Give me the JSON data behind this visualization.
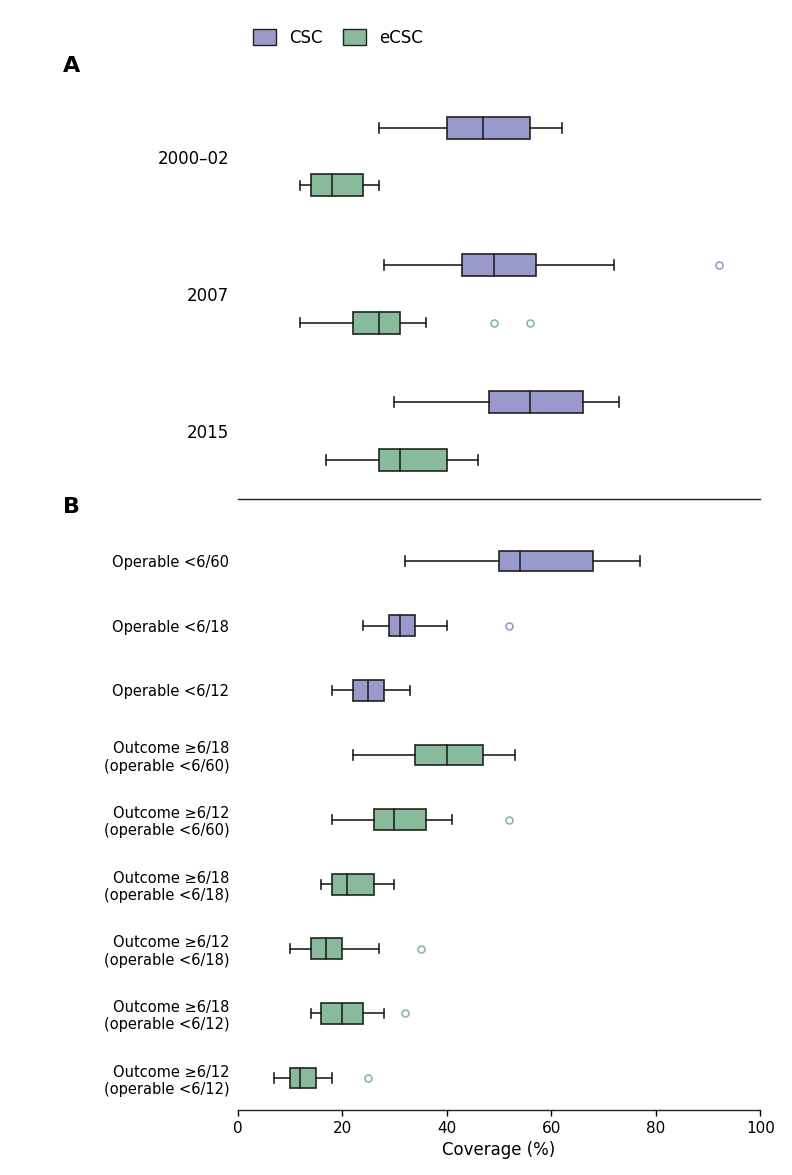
{
  "panel_A": {
    "title": "A",
    "rows": [
      {
        "label": "2000–02",
        "series": [
          {
            "type": "CSC",
            "color": "#9999cc",
            "whisker_low": 27,
            "q1": 40,
            "median": 47,
            "q3": 56,
            "whisker_high": 62,
            "outliers": []
          },
          {
            "type": "eCSC",
            "color": "#88bb99",
            "whisker_low": 12,
            "q1": 14,
            "median": 18,
            "q3": 24,
            "whisker_high": 27,
            "outliers": []
          }
        ]
      },
      {
        "label": "2007",
        "series": [
          {
            "type": "CSC",
            "color": "#9999cc",
            "whisker_low": 28,
            "q1": 43,
            "median": 49,
            "q3": 57,
            "whisker_high": 72,
            "outliers": [
              92
            ]
          },
          {
            "type": "eCSC",
            "color": "#88bb99",
            "whisker_low": 12,
            "q1": 22,
            "median": 27,
            "q3": 31,
            "whisker_high": 36,
            "outliers": [
              49,
              56
            ]
          }
        ]
      },
      {
        "label": "2015",
        "series": [
          {
            "type": "CSC",
            "color": "#9999cc",
            "whisker_low": 30,
            "q1": 48,
            "median": 56,
            "q3": 66,
            "whisker_high": 73,
            "outliers": []
          },
          {
            "type": "eCSC",
            "color": "#88bb99",
            "whisker_low": 17,
            "q1": 27,
            "median": 31,
            "q3": 40,
            "whisker_high": 46,
            "outliers": []
          }
        ]
      }
    ]
  },
  "panel_B": {
    "title": "B",
    "rows": [
      {
        "label": "Operable <6/60",
        "series": [
          {
            "type": "CSC",
            "color": "#9999cc",
            "whisker_low": 32,
            "q1": 50,
            "median": 54,
            "q3": 68,
            "whisker_high": 77,
            "outliers": []
          }
        ]
      },
      {
        "label": "Operable <6/18",
        "series": [
          {
            "type": "CSC",
            "color": "#9999cc",
            "whisker_low": 24,
            "q1": 29,
            "median": 31,
            "q3": 34,
            "whisker_high": 40,
            "outliers": [
              52
            ]
          }
        ]
      },
      {
        "label": "Operable <6/12",
        "series": [
          {
            "type": "CSC",
            "color": "#9999cc",
            "whisker_low": 18,
            "q1": 22,
            "median": 25,
            "q3": 28,
            "whisker_high": 33,
            "outliers": []
          }
        ]
      },
      {
        "label": "Outcome ≥6/18\n(operable <6/60)",
        "series": [
          {
            "type": "eCSC",
            "color": "#88bb99",
            "whisker_low": 22,
            "q1": 34,
            "median": 40,
            "q3": 47,
            "whisker_high": 53,
            "outliers": []
          }
        ]
      },
      {
        "label": "Outcome ≥6/12\n(operable <6/60)",
        "series": [
          {
            "type": "eCSC",
            "color": "#88bb99",
            "whisker_low": 18,
            "q1": 26,
            "median": 30,
            "q3": 36,
            "whisker_high": 41,
            "outliers": [
              52
            ]
          }
        ]
      },
      {
        "label": "Outcome ≥6/18\n(operable <6/18)",
        "series": [
          {
            "type": "eCSC",
            "color": "#88bb99",
            "whisker_low": 16,
            "q1": 18,
            "median": 21,
            "q3": 26,
            "whisker_high": 30,
            "outliers": []
          }
        ]
      },
      {
        "label": "Outcome ≥6/12\n(operable <6/18)",
        "series": [
          {
            "type": "eCSC",
            "color": "#88bb99",
            "whisker_low": 10,
            "q1": 14,
            "median": 17,
            "q3": 20,
            "whisker_high": 27,
            "outliers": [
              35
            ]
          }
        ]
      },
      {
        "label": "Outcome ≥6/18\n(operable <6/12)",
        "series": [
          {
            "type": "eCSC",
            "color": "#88bb99",
            "whisker_low": 14,
            "q1": 16,
            "median": 20,
            "q3": 24,
            "whisker_high": 28,
            "outliers": [
              32
            ]
          }
        ]
      },
      {
        "label": "Outcome ≥6/12\n(operable <6/12)",
        "series": [
          {
            "type": "eCSC",
            "color": "#88bb99",
            "whisker_low": 7,
            "q1": 10,
            "median": 12,
            "q3": 15,
            "whisker_high": 18,
            "outliers": [
              25
            ]
          }
        ]
      }
    ]
  },
  "csc_color": "#9999cc",
  "ecsc_color": "#88bb99",
  "box_edge_color": "#222222",
  "xlim": [
    0,
    100
  ],
  "xlabel": "Coverage (%)",
  "xticks": [
    0,
    20,
    40,
    60,
    80,
    100
  ],
  "bg_color": "#ffffff"
}
